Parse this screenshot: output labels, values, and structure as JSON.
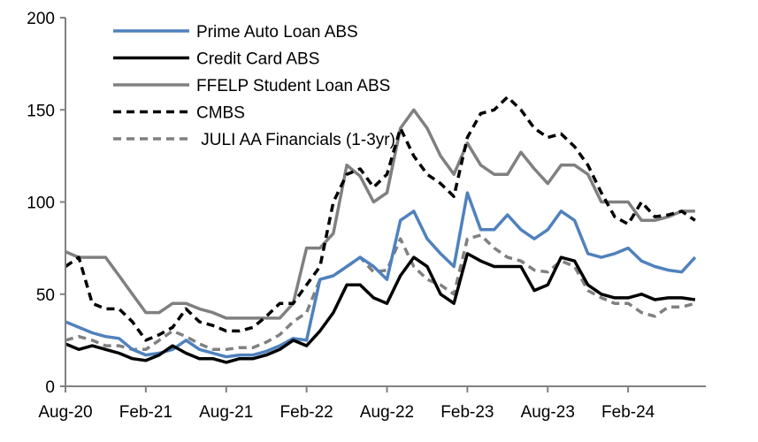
{
  "chart_data": {
    "type": "line",
    "title": "",
    "xlabel": "",
    "ylabel": "",
    "ylim": [
      0,
      200
    ],
    "yticks": [
      "0",
      "50",
      "100",
      "150",
      "200"
    ],
    "xticks": [
      "Aug-20",
      "Feb-21",
      "Aug-21",
      "Feb-22",
      "Aug-22",
      "Feb-23",
      "Aug-23",
      "Feb-24"
    ],
    "grid": false,
    "legend": "top-left",
    "x": [
      "Aug-20",
      "Sep-20",
      "Oct-20",
      "Nov-20",
      "Dec-20",
      "Jan-21",
      "Feb-21",
      "Mar-21",
      "Apr-21",
      "May-21",
      "Jun-21",
      "Jul-21",
      "Aug-21",
      "Sep-21",
      "Oct-21",
      "Nov-21",
      "Dec-21",
      "Jan-22",
      "Feb-22",
      "Mar-22",
      "Apr-22",
      "May-22",
      "Jun-22",
      "Jul-22",
      "Aug-22",
      "Sep-22",
      "Oct-22",
      "Nov-22",
      "Dec-22",
      "Jan-23",
      "Feb-23",
      "Mar-23",
      "Apr-23",
      "May-23",
      "Jun-23",
      "Jul-23",
      "Aug-23",
      "Sep-23",
      "Oct-23",
      "Nov-23",
      "Dec-23",
      "Jan-24",
      "Feb-24",
      "Mar-24",
      "Apr-24",
      "May-24",
      "Jun-24",
      "Jul-24"
    ],
    "series": [
      {
        "name": "Prime Auto Loan ABS",
        "color": "#4f81bd",
        "dash": false,
        "values": [
          35,
          32,
          29,
          27,
          26,
          20,
          17,
          18,
          20,
          25,
          20,
          18,
          16,
          17,
          17,
          19,
          22,
          26,
          25,
          58,
          60,
          65,
          70,
          65,
          58,
          90,
          95,
          80,
          72,
          65,
          105,
          85,
          85,
          93,
          85,
          80,
          85,
          95,
          90,
          72,
          70,
          72,
          75,
          68,
          65,
          63,
          62,
          70
        ]
      },
      {
        "name": "Credit Card ABS",
        "color": "#000000",
        "dash": false,
        "values": [
          23,
          20,
          22,
          20,
          18,
          15,
          14,
          17,
          22,
          18,
          15,
          15,
          13,
          15,
          15,
          17,
          20,
          25,
          22,
          30,
          40,
          55,
          55,
          48,
          45,
          60,
          70,
          65,
          50,
          45,
          72,
          68,
          65,
          65,
          65,
          52,
          55,
          70,
          68,
          55,
          50,
          48,
          48,
          50,
          47,
          48,
          48,
          47
        ]
      },
      {
        "name": "FFELP Student Loan ABS",
        "color": "#808080",
        "dash": false,
        "values": [
          73,
          70,
          70,
          70,
          60,
          50,
          40,
          40,
          45,
          45,
          42,
          40,
          37,
          37,
          37,
          37,
          37,
          45,
          75,
          75,
          83,
          120,
          114,
          100,
          105,
          140,
          150,
          140,
          125,
          115,
          132,
          120,
          115,
          115,
          127,
          118,
          110,
          120,
          120,
          115,
          100,
          100,
          100,
          90,
          90,
          92,
          95,
          95
        ]
      },
      {
        "name": "CMBS",
        "color": "#000000",
        "dash": true,
        "values": [
          65,
          70,
          45,
          42,
          42,
          35,
          25,
          28,
          32,
          42,
          35,
          33,
          30,
          30,
          32,
          38,
          45,
          45,
          55,
          65,
          100,
          115,
          118,
          108,
          115,
          140,
          125,
          115,
          110,
          103,
          135,
          148,
          150,
          157,
          150,
          140,
          135,
          137,
          130,
          120,
          105,
          92,
          88,
          100,
          92,
          93,
          95,
          90
        ]
      },
      {
        "name": " JULI AA Financials (1-3yr)",
        "color": "#808080",
        "dash": true,
        "values": [
          25,
          27,
          25,
          22,
          22,
          20,
          20,
          25,
          30,
          27,
          23,
          20,
          20,
          21,
          21,
          24,
          28,
          35,
          40,
          58,
          60,
          65,
          70,
          62,
          63,
          80,
          65,
          58,
          55,
          50,
          80,
          82,
          75,
          70,
          68,
          63,
          62,
          68,
          65,
          52,
          48,
          45,
          45,
          40,
          38,
          43,
          43,
          45
        ]
      }
    ]
  }
}
